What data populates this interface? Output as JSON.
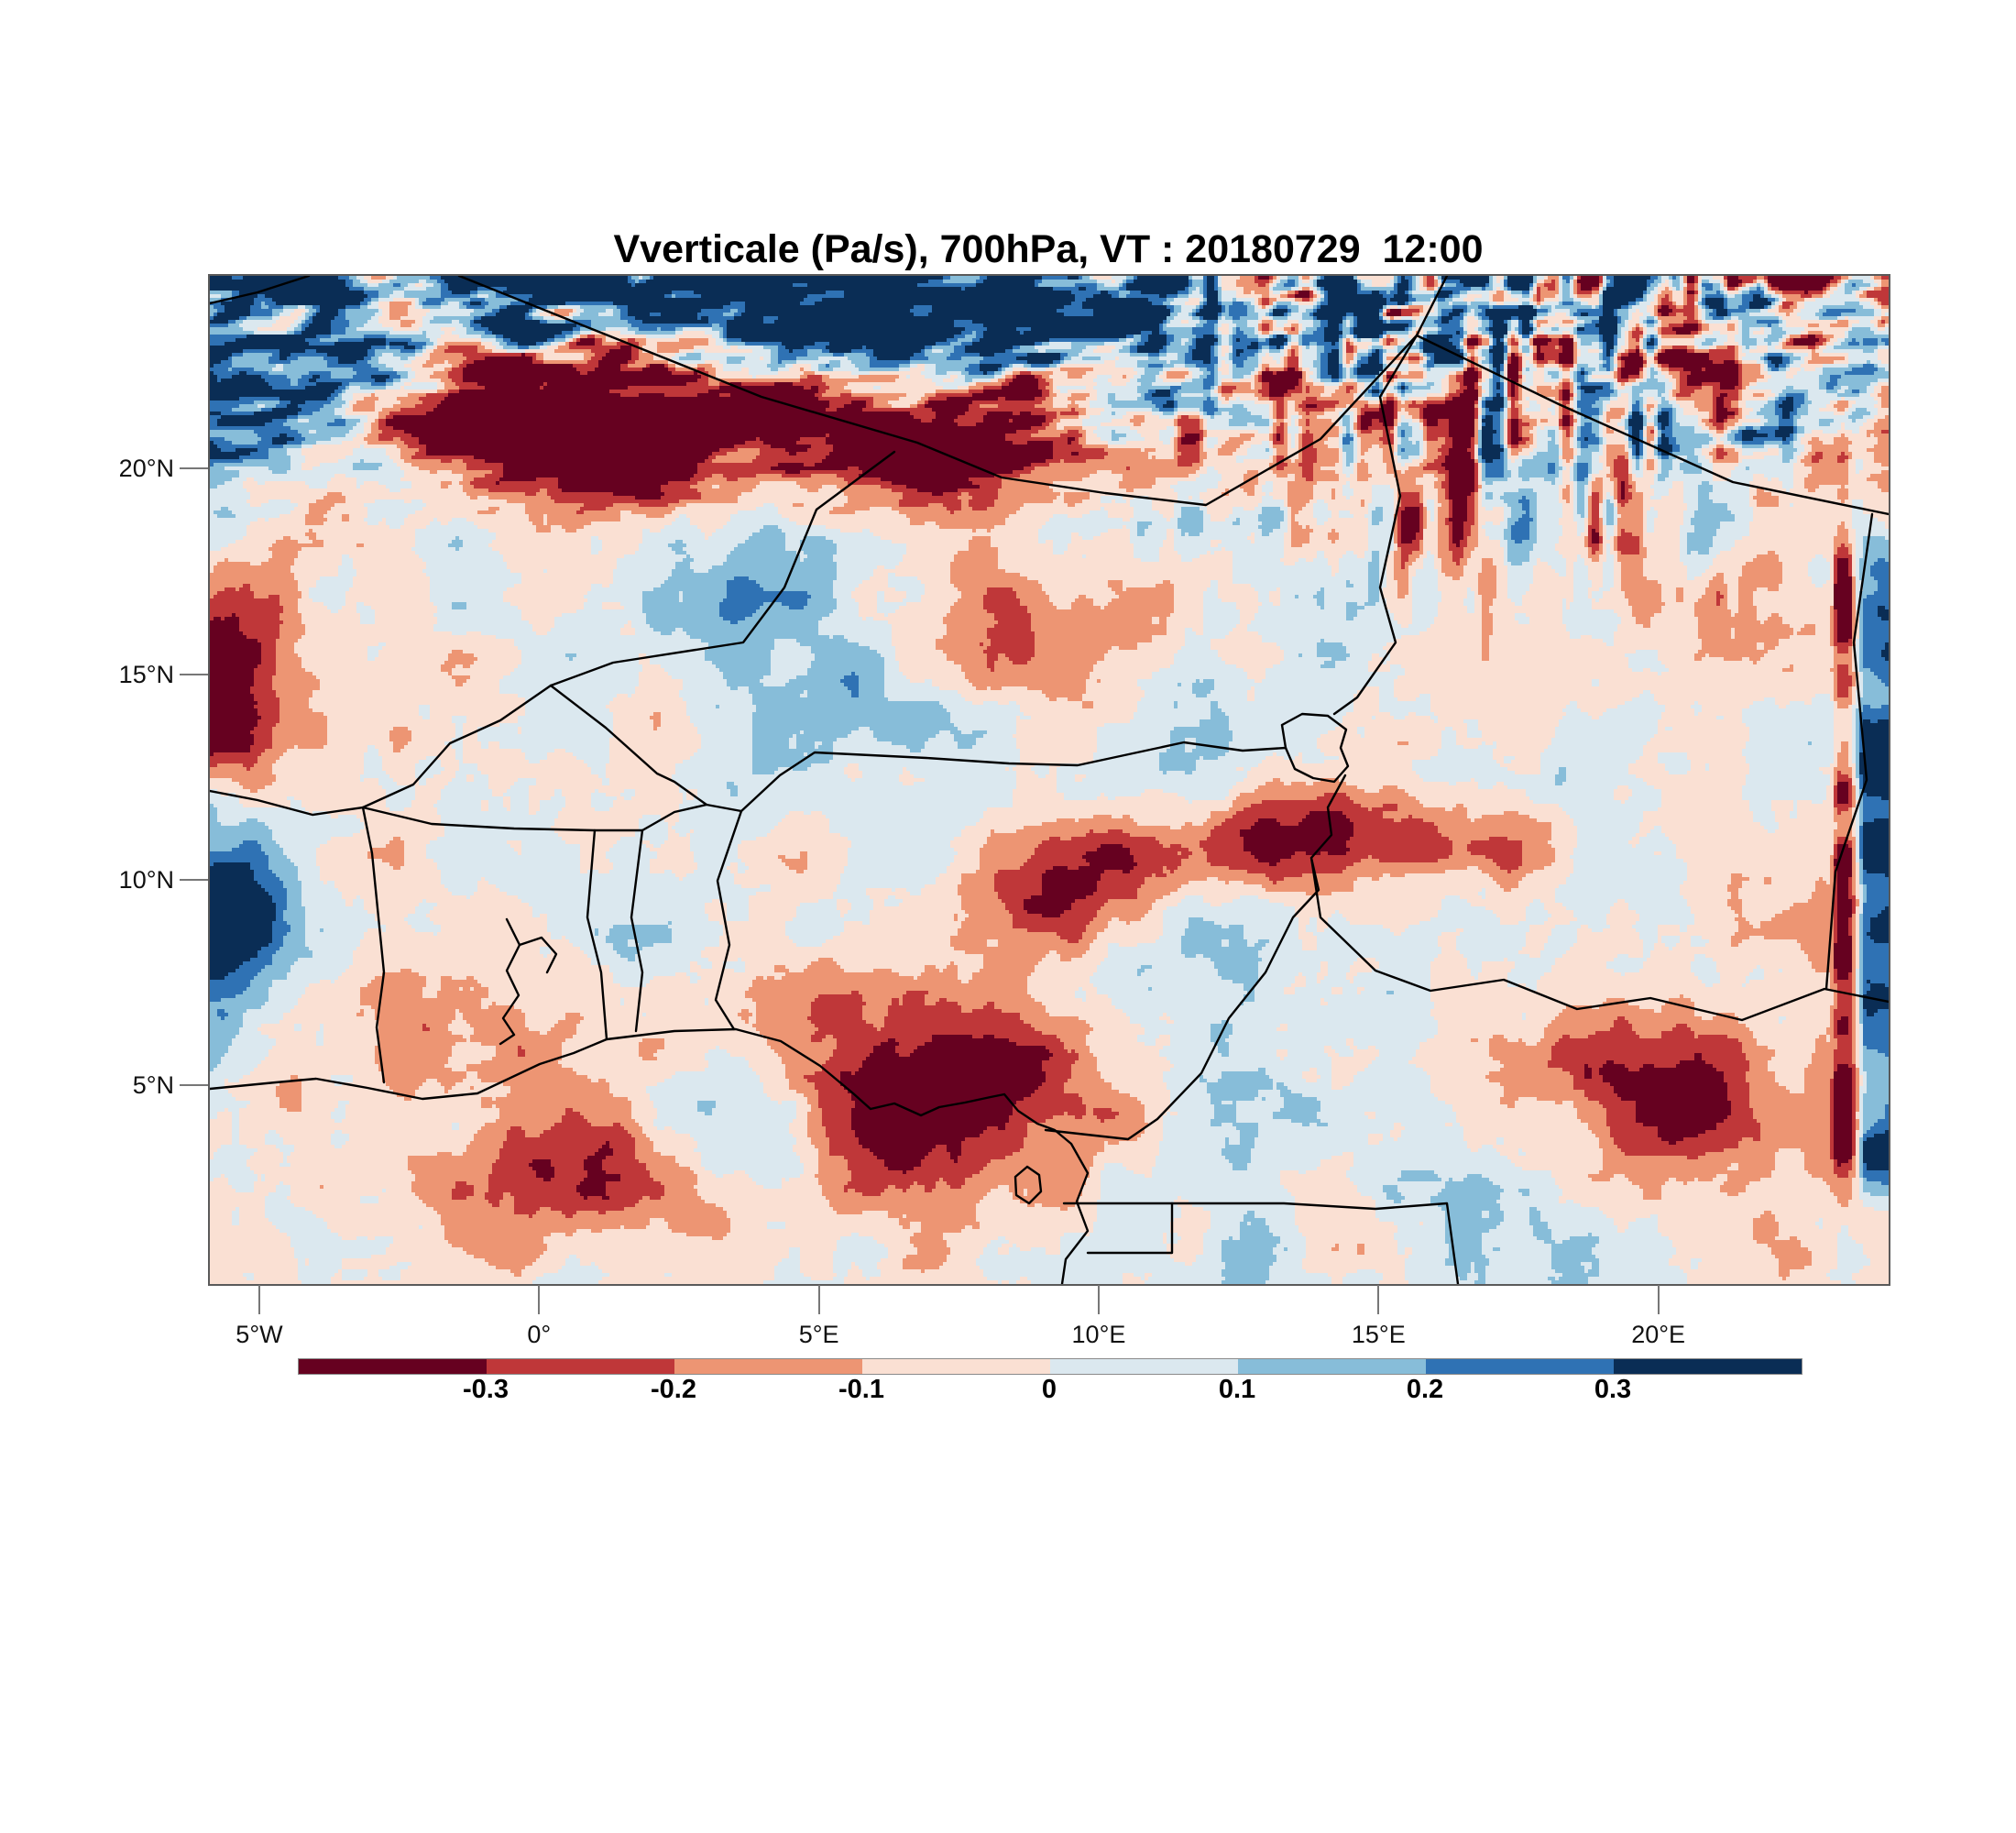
{
  "title": "Vverticale (Pa/s), 700hPa, VT : 20180729  12:00",
  "chart_data": {
    "type": "heatmap",
    "subtype": "filled contour map of vertical velocity over West and Central Africa",
    "title": "Vverticale (Pa/s), 700hPa, VT : 20180729  12:00",
    "variable": "Vverticale",
    "units": "Pa/s",
    "pressure_level": "700hPa",
    "valid_time": "20180729 12:00",
    "x_axis": {
      "ticks": [
        {
          "label": "5°W",
          "lon": -5
        },
        {
          "label": "0°",
          "lon": 0
        },
        {
          "label": "5°E",
          "lon": 5
        },
        {
          "label": "10°E",
          "lon": 10
        },
        {
          "label": "15°E",
          "lon": 15
        },
        {
          "label": "20°E",
          "lon": 20
        }
      ],
      "lon_min": -5.9,
      "lon_max": 24.1,
      "grid": false
    },
    "y_axis": {
      "ticks": [
        {
          "label": "20°N",
          "lat": 20
        },
        {
          "label": "15°N",
          "lat": 15
        },
        {
          "label": "10°N",
          "lat": 10
        },
        {
          "label": "5°N",
          "lat": 5
        }
      ],
      "lat_min": 0.2,
      "lat_max": 24.7,
      "grid": false
    },
    "colorbar": {
      "orientation": "horizontal",
      "boundary_values": [
        -0.3,
        -0.2,
        -0.1,
        0,
        0.1,
        0.2,
        0.3
      ],
      "boundary_labels": [
        "-0.3",
        "-0.2",
        "-0.1",
        "0",
        "0.1",
        "0.2",
        "0.3"
      ],
      "bin_colors": [
        "#660120",
        "#bf3739",
        "#ed9573",
        "#fae0d3",
        "#dbe8ef",
        "#87bdd9",
        "#2f72b4",
        "#0a2d55"
      ]
    },
    "notable_features": [
      "band of strong alternating dark-red and dark-blue wave streaks across the Saharan north of the domain",
      "fan of vertical dark streaks in the upper-right (Tibesti) sector",
      "dark red subsidence cells along the Guinea coast near 5N with an adjacent dark blue cell",
      "dark blue vertical stripe hugging the right map edge with a dark red stripe just inside it",
      "mostly pale pink and pale blue quiet field over the southern half"
    ]
  },
  "colors": {
    "background": "#ffffff",
    "text": "#000000",
    "tick": "#777777",
    "map_frame": "#5a5a5a",
    "border_lines": "#000000"
  }
}
